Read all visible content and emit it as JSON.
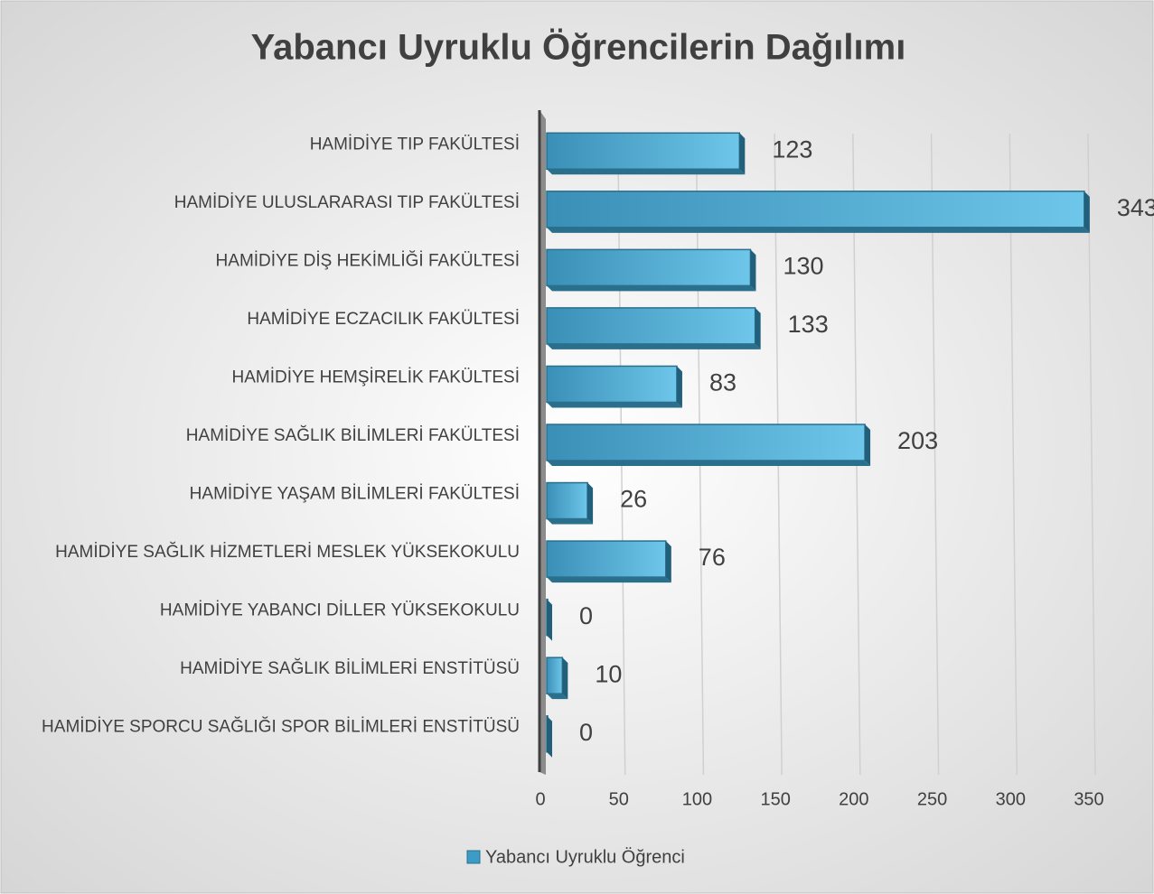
{
  "chart_data": {
    "type": "bar",
    "orientation": "horizontal",
    "title": "Yabancı Uyruklu Öğrencilerin Dağılımı",
    "categories": [
      "HAMİDİYE TIP FAKÜLTESİ",
      "HAMİDİYE ULUSLARARASI TIP FAKÜLTESİ",
      "HAMİDİYE DİŞ HEKİMLİĞİ FAKÜLTESİ",
      "HAMİDİYE ECZACILIK FAKÜLTESİ",
      "HAMİDİYE HEMŞİRELİK FAKÜLTESİ",
      "HAMİDİYE SAĞLIK BİLİMLERİ FAKÜLTESİ",
      "HAMİDİYE YAŞAM BİLİMLERİ FAKÜLTESİ",
      "HAMİDİYE SAĞLIK HİZMETLERİ MESLEK YÜKSEKOKULU",
      "HAMİDİYE YABANCI DİLLER YÜKSEKOKULU",
      "HAMİDİYE SAĞLIK BİLİMLERİ ENSTİTÜSÜ",
      "HAMİDİYE SPORCU SAĞLIĞI SPOR BİLİMLERİ ENSTİTÜSÜ"
    ],
    "series": [
      {
        "name": "Yabancı Uyruklu Öğrenci",
        "color": "#3d9cc6",
        "values": [
          123,
          343,
          130,
          133,
          83,
          203,
          26,
          76,
          0,
          10,
          0
        ]
      }
    ],
    "xlim": [
      0,
      350
    ],
    "xticks": [
      0,
      50,
      100,
      150,
      200,
      250,
      300,
      350
    ],
    "grid": true,
    "legend": "bottom"
  }
}
